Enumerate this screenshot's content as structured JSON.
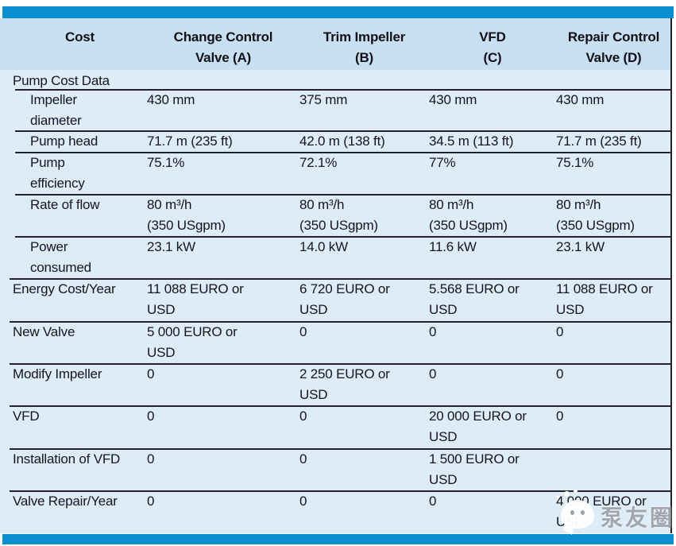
{
  "theme": {
    "bar_blue": "#0a8ed2",
    "header_bg": "#c8e0f1",
    "row_bg": "#deecf8",
    "line_color": "#23232b",
    "text_color": "#15151d"
  },
  "table": {
    "columns": [
      {
        "label": "Cost"
      },
      {
        "label": "Change Control\nValve (A)"
      },
      {
        "label": "Trim Impeller\n(B)"
      },
      {
        "label": "VFD\n(C)"
      },
      {
        "label": "Repair Control\nValve (D)"
      }
    ],
    "rows": [
      {
        "type": "section",
        "label": "Pump Cost Data",
        "values": [
          "",
          "",
          "",
          ""
        ]
      },
      {
        "type": "sub",
        "label": "Impeller\ndiameter",
        "values": [
          "430 mm",
          "375 mm",
          "430 mm",
          "430 mm"
        ]
      },
      {
        "type": "sub",
        "label": "Pump head",
        "values": [
          "71.7 m (235 ft)",
          "42.0 m (138 ft)",
          "34.5 m (113 ft)",
          "71.7 m (235 ft)"
        ]
      },
      {
        "type": "sub",
        "label": "Pump\nefficiency",
        "values": [
          "75.1%",
          "72.1%",
          "77%",
          "75.1%"
        ]
      },
      {
        "type": "sub",
        "label": "Rate of flow",
        "values": [
          "80 m³/h\n(350 USgpm)",
          "80 m³/h\n(350 USgpm)",
          "80 m³/h\n(350 USgpm)",
          "80 m³/h\n(350 USgpm)"
        ]
      },
      {
        "type": "sub",
        "label": "Power\nconsumed",
        "values": [
          "23.1 kW",
          "14.0 kW",
          "11.6 kW",
          "23.1 kW"
        ]
      },
      {
        "type": "main",
        "label": "Energy Cost/Year",
        "values": [
          "11 088 EURO or\nUSD",
          "6 720 EURO or\nUSD",
          "5.568 EURO or\nUSD",
          "11 088 EURO or\nUSD"
        ]
      },
      {
        "type": "main",
        "label": "New Valve",
        "values": [
          "5 000 EURO or\nUSD",
          "0",
          "0",
          "0"
        ]
      },
      {
        "type": "main",
        "label": "Modify Impeller",
        "values": [
          "0",
          "2 250 EURO or\nUSD",
          "0",
          "0"
        ]
      },
      {
        "type": "main",
        "label": "VFD",
        "values": [
          "0",
          "0",
          "20 000 EURO or\nUSD",
          "0"
        ]
      },
      {
        "type": "main",
        "label": "Installation of VFD",
        "values": [
          "0",
          "0",
          "1 500 EURO or\nUSD",
          ""
        ]
      },
      {
        "type": "main",
        "label": "Valve Repair/Year",
        "values": [
          "0",
          "0",
          "0",
          "4 000 EURO or\nUSD"
        ]
      }
    ]
  },
  "watermark": {
    "text": "泵友圈"
  }
}
